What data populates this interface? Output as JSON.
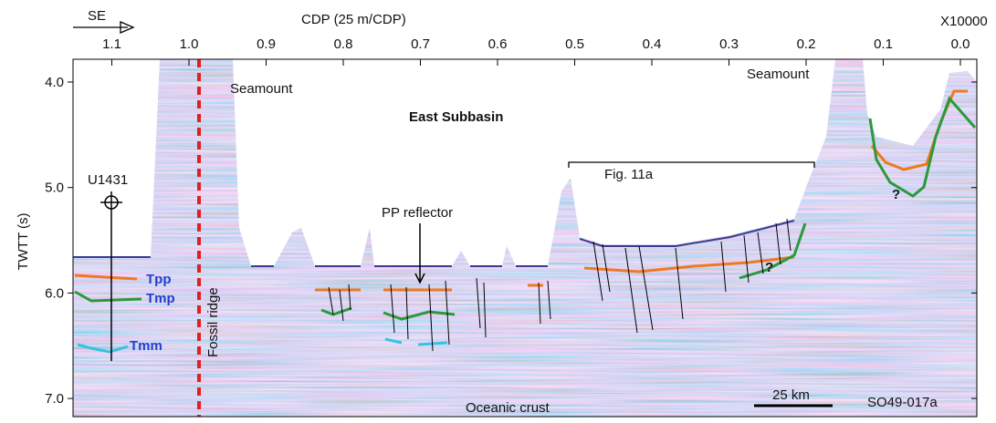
{
  "axes": {
    "x": {
      "label": "CDP (25 m/CDP)",
      "multiplier": "X10000",
      "direction": "SE",
      "ticks": [
        {
          "value": 1.1,
          "label": "1.1"
        },
        {
          "value": 1.0,
          "label": "1.0"
        },
        {
          "value": 0.9,
          "label": "0.9"
        },
        {
          "value": 0.8,
          "label": "0.8"
        },
        {
          "value": 0.7,
          "label": "0.7"
        },
        {
          "value": 0.6,
          "label": "0.6"
        },
        {
          "value": 0.5,
          "label": "0.5"
        },
        {
          "value": 0.4,
          "label": "0.4"
        },
        {
          "value": 0.3,
          "label": "0.3"
        },
        {
          "value": 0.2,
          "label": "0.2"
        },
        {
          "value": 0.1,
          "label": "0.1"
        },
        {
          "value": 0.0,
          "label": "0.0"
        }
      ]
    },
    "y": {
      "label": "TWTT (s)",
      "ticks": [
        {
          "value": 4.0,
          "label": "4.0"
        },
        {
          "value": 5.0,
          "label": "5.0"
        },
        {
          "value": 6.0,
          "label": "6.0"
        },
        {
          "value": 7.0,
          "label": "7.0"
        }
      ]
    }
  },
  "annotations": {
    "seamount_left": "Seamount",
    "seamount_right": "Seamount",
    "basin": "East Subbasin",
    "site": "U1431",
    "fig_ref": "Fig. 11a",
    "pp": "PP reflector",
    "tpp": "Tpp",
    "tmp": "Tmp",
    "tmm": "Tmm",
    "ridge": "Fossil ridge",
    "question_1": "?",
    "question_2": "?",
    "crust": "Oceanic crust",
    "scale": "25 km",
    "profile": "SO49-017a"
  }
}
